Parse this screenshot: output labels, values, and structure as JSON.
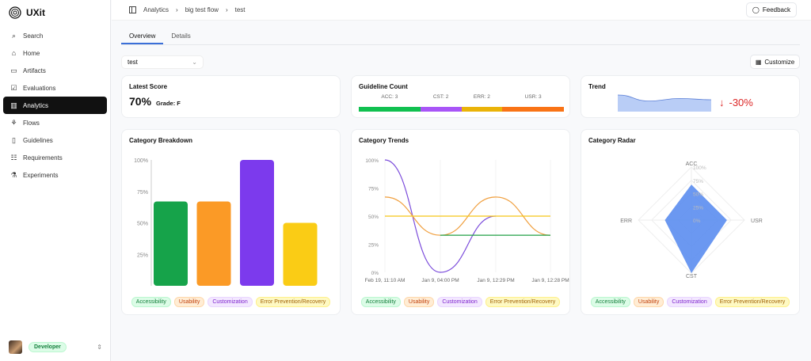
{
  "app": {
    "name": "UXit"
  },
  "sidebar": {
    "items": [
      {
        "label": "Search",
        "icon": "search-icon"
      },
      {
        "label": "Home",
        "icon": "home-icon"
      },
      {
        "label": "Artifacts",
        "icon": "folder-icon"
      },
      {
        "label": "Evaluations",
        "icon": "checkbox-icon"
      },
      {
        "label": "Analytics",
        "icon": "chart-icon",
        "active": true
      },
      {
        "label": "Flows",
        "icon": "flow-icon"
      },
      {
        "label": "Guidelines",
        "icon": "book-icon"
      },
      {
        "label": "Requirements",
        "icon": "list-icon"
      },
      {
        "label": "Experiments",
        "icon": "flask-icon"
      }
    ],
    "user": {
      "role": "Developer"
    }
  },
  "header": {
    "breadcrumb": [
      "Analytics",
      "big test flow",
      "test"
    ],
    "feedback": "Feedback"
  },
  "tabs": [
    {
      "label": "Overview",
      "active": true
    },
    {
      "label": "Details"
    }
  ],
  "select": {
    "value": "test"
  },
  "customize": "Customize",
  "latest_score": {
    "title": "Latest Score",
    "value": "70%",
    "grade": "Grade: F"
  },
  "guideline_count": {
    "title": "Guideline Count",
    "items": [
      {
        "label": "ACC: 3",
        "value": 3,
        "color": "#10c050"
      },
      {
        "label": "CST: 2",
        "value": 2,
        "color": "#a855f7"
      },
      {
        "label": "ERR: 2",
        "value": 2,
        "color": "#eab308"
      },
      {
        "label": "USR: 3",
        "value": 3,
        "color": "#f97316"
      }
    ]
  },
  "trend": {
    "title": "Trend",
    "change": "-30%",
    "sparkline": [
      100,
      62,
      78,
      70
    ],
    "color": "#dc2626"
  },
  "legend": [
    {
      "label": "Accessibility",
      "bg": "#dcfce7",
      "fg": "#15803d",
      "bd": "#bbf7d0"
    },
    {
      "label": "Usability",
      "bg": "#ffedd5",
      "fg": "#c2410c",
      "bd": "#fed7aa"
    },
    {
      "label": "Customization",
      "bg": "#f3e8ff",
      "fg": "#7e22ce",
      "bd": "#e9d5ff"
    },
    {
      "label": "Error Prevention/Recovery",
      "bg": "#fef9c3",
      "fg": "#a16207",
      "bd": "#fef08a"
    }
  ],
  "chart_data": [
    {
      "type": "bar",
      "title": "Category Breakdown",
      "categories": [
        "Accessibility",
        "Usability",
        "Customization",
        "Error Prevention/Recovery"
      ],
      "values": [
        67,
        67,
        100,
        50
      ],
      "colors": [
        "#16a34a",
        "#fb9a26",
        "#7c3aed",
        "#facc15"
      ],
      "yticks": [
        "25%",
        "50%",
        "75%",
        "100%"
      ],
      "ylim": [
        0,
        100
      ]
    },
    {
      "type": "line",
      "title": "Category Trends",
      "x": [
        "Feb 19, 11:10 AM",
        "Jan 9, 04:00 PM",
        "Jan 9, 12:29 PM",
        "Jan 9, 12:28 PM"
      ],
      "yticks": [
        "0%",
        "25%",
        "50%",
        "75%",
        "100%"
      ],
      "ylim": [
        0,
        100
      ],
      "series": [
        {
          "category": "Customization",
          "color": "#7c4ddb",
          "values": [
            100,
            0,
            50,
            null
          ]
        },
        {
          "category": "Usability",
          "color": "#f0a040",
          "values": [
            67,
            33,
            67,
            33
          ]
        },
        {
          "category": "Error Prevention/Recovery",
          "color": "#f5c518",
          "values": [
            50,
            50,
            50,
            50
          ]
        },
        {
          "category": "Accessibility",
          "color": "#22a046",
          "values": [
            null,
            33,
            33,
            33
          ]
        }
      ]
    },
    {
      "type": "radar",
      "title": "Category Radar",
      "axes": [
        "ACC",
        "USR",
        "CST",
        "ERR"
      ],
      "values": [
        67,
        67,
        100,
        50
      ],
      "ticks": [
        "0%",
        "25%",
        "50%",
        "75%",
        "100%"
      ],
      "color": "#5b8def"
    }
  ]
}
